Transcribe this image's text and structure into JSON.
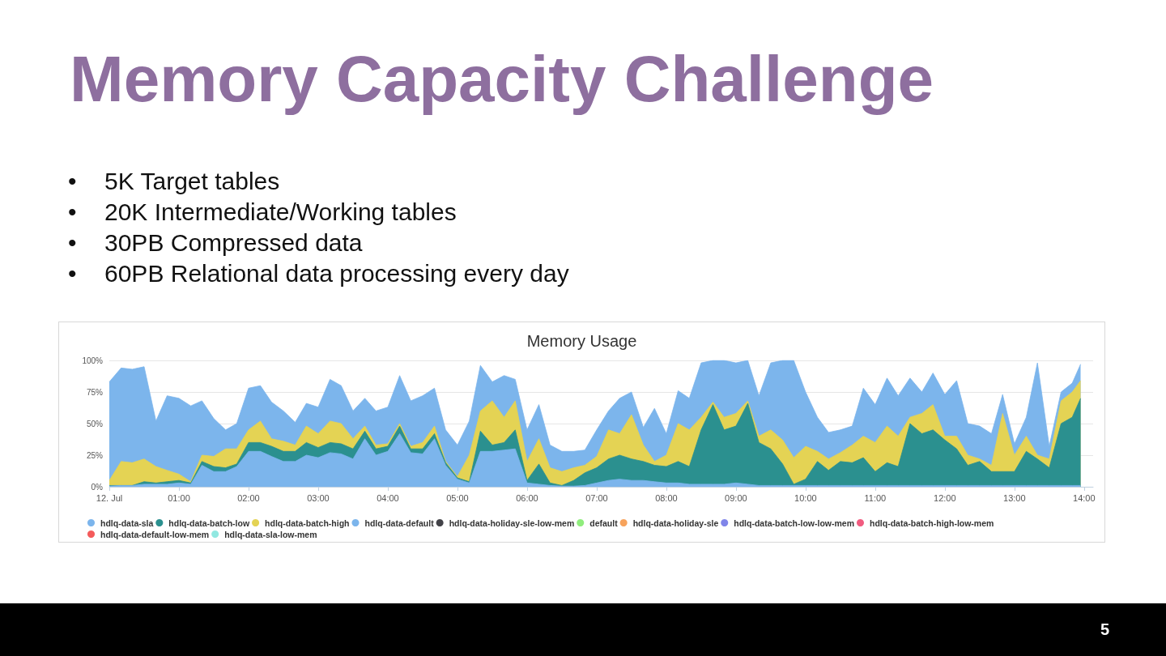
{
  "chart_data": {
    "type": "area",
    "title": "Memory Usage",
    "stacked": true,
    "grid": "y",
    "legend": "bottom",
    "marker": "none",
    "annotations": [
      "Memory Capacity Challenge",
      "• 5K Target tables",
      "• 20K Intermediate/Working tables",
      "• 30PB Compressed data",
      "• 60PB Relational data processing every day",
      "5"
    ],
    "xlim": [
      0,
      14.13
    ],
    "xticks": [
      {
        "value": 0,
        "label": "12. Jul"
      },
      {
        "value": 1,
        "label": "01:00"
      },
      {
        "value": 2,
        "label": "02:00"
      },
      {
        "value": 3,
        "label": "03:00"
      },
      {
        "value": 4,
        "label": "04:00"
      },
      {
        "value": 5,
        "label": "05:00"
      },
      {
        "value": 6,
        "label": "06:00"
      },
      {
        "value": 7,
        "label": "07:00"
      },
      {
        "value": 8,
        "label": "08:00"
      },
      {
        "value": 9,
        "label": "09:00"
      },
      {
        "value": 10,
        "label": "10:00"
      },
      {
        "value": 11,
        "label": "11:00"
      },
      {
        "value": 12,
        "label": "12:00"
      },
      {
        "value": 13,
        "label": "13:00"
      },
      {
        "value": 14,
        "label": "14:00"
      }
    ],
    "ylim": [
      0,
      100
    ],
    "yticks": [
      {
        "value": 0,
        "label": "0%"
      },
      {
        "value": 25,
        "label": "25%"
      },
      {
        "value": 50,
        "label": "50%"
      },
      {
        "value": 75,
        "label": "75%"
      },
      {
        "value": 100,
        "label": "100%"
      }
    ],
    "x": [
      0,
      0.17,
      0.33,
      0.5,
      0.67,
      0.83,
      1,
      1.17,
      1.33,
      1.5,
      1.67,
      1.83,
      2,
      2.17,
      2.33,
      2.5,
      2.67,
      2.83,
      3,
      3.17,
      3.33,
      3.5,
      3.67,
      3.83,
      4,
      4.17,
      4.33,
      4.5,
      4.67,
      4.83,
      5,
      5.17,
      5.33,
      5.5,
      5.67,
      5.83,
      6,
      6.17,
      6.33,
      6.5,
      6.67,
      6.83,
      7,
      7.17,
      7.33,
      7.5,
      7.67,
      7.83,
      8,
      8.17,
      8.33,
      8.5,
      8.67,
      8.83,
      9,
      9.17,
      9.33,
      9.5,
      9.67,
      9.83,
      10,
      10.17,
      10.33,
      10.5,
      10.67,
      10.83,
      11,
      11.17,
      11.33,
      11.5,
      11.67,
      11.83,
      12,
      12.17,
      12.33,
      12.5,
      12.67,
      12.83,
      13,
      13.17,
      13.33,
      13.5,
      13.67,
      13.83,
      13.95
    ],
    "series": [
      {
        "name": "hdlq-data-sla",
        "color": "#7cb5ec",
        "values": [
          0.5,
          1,
          1,
          2,
          2,
          2,
          3,
          2,
          17,
          12,
          12,
          16,
          28,
          28,
          24,
          20,
          20,
          25,
          23,
          27,
          26,
          22,
          38,
          25,
          28,
          42,
          27,
          26,
          38,
          17,
          6,
          3,
          28,
          28,
          29,
          30,
          3,
          2,
          1,
          0.5,
          0.5,
          1,
          3,
          5,
          6,
          5,
          5,
          4,
          3,
          3,
          2,
          2,
          2,
          2,
          3,
          2,
          1,
          1,
          1,
          1,
          1,
          1,
          1,
          1,
          1,
          1,
          1,
          1,
          1,
          1,
          1,
          1,
          1,
          1,
          1,
          1,
          1,
          1,
          1,
          1,
          1,
          1,
          1,
          1,
          1
        ]
      },
      {
        "name": "hdlq-data-batch-low",
        "color": "#2b908f",
        "values": [
          0.5,
          0,
          0,
          2,
          1,
          2,
          2,
          1,
          3,
          4,
          3,
          2,
          7,
          7,
          8,
          8,
          8,
          10,
          8,
          8,
          8,
          8,
          6,
          5,
          4,
          6,
          3,
          4,
          4,
          2,
          1,
          1,
          16,
          5,
          6,
          15,
          2,
          16,
          2,
          0.5,
          4.5,
          10,
          12,
          17,
          19,
          17,
          15,
          13,
          13,
          17,
          14,
          43,
          63,
          43,
          45,
          64,
          34,
          29,
          17,
          1,
          5,
          19,
          12,
          19,
          18,
          22,
          11,
          18,
          15,
          49,
          41,
          44,
          36,
          29,
          16,
          19,
          11,
          11,
          11,
          27,
          21,
          14,
          49,
          54,
          69
        ]
      },
      {
        "name": "hdlq-data-batch-high",
        "color": "#e4d354",
        "values": [
          4,
          19,
          18,
          18,
          13,
          9,
          5,
          1,
          5,
          8,
          15,
          12,
          10,
          17,
          6,
          8,
          5,
          13,
          11,
          17,
          16,
          8,
          4,
          3,
          2,
          2,
          2,
          5,
          6,
          1,
          1,
          21,
          16,
          35,
          20,
          23,
          15,
          20,
          12,
          11,
          10,
          6,
          9,
          23,
          17,
          35,
          13,
          3,
          9,
          30,
          29,
          10,
          2,
          10,
          10,
          2,
          5,
          15,
          19,
          21,
          26,
          8,
          9,
          7,
          14,
          17,
          23,
          29,
          24,
          5,
          16,
          20,
          3,
          10,
          8,
          2,
          5,
          46,
          13,
          12,
          3,
          7,
          18,
          20,
          14
        ]
      },
      {
        "name": "hdlq-data-default",
        "color": "#7cb5ec",
        "values": [
          78,
          74,
          74,
          73,
          36,
          59,
          60,
          60,
          43,
          30,
          15,
          20,
          33,
          28,
          29,
          24,
          18,
          18,
          21,
          33,
          30,
          22,
          22,
          27,
          29,
          38,
          36,
          37,
          30,
          25,
          25,
          27,
          36,
          15,
          33,
          17,
          25,
          27,
          18,
          16,
          13,
          12,
          21,
          15,
          28,
          18,
          14,
          42,
          17,
          26,
          25,
          43,
          33,
          45,
          40,
          32,
          32,
          53,
          63,
          77,
          43,
          27,
          21,
          18,
          15,
          38,
          30,
          38,
          32,
          31,
          17,
          25,
          33,
          44,
          25,
          26,
          25,
          15,
          9,
          15,
          73,
          10,
          7,
          7,
          13
        ]
      },
      {
        "name": "hdlq-data-holiday-sle-low-mem",
        "color": "#434348",
        "values": [
          null,
          null,
          null,
          null,
          null,
          null,
          null,
          null,
          null,
          null,
          null,
          null,
          null,
          null,
          null,
          null,
          null,
          null,
          null,
          null,
          null,
          null,
          null,
          null,
          null,
          null,
          null,
          null,
          null,
          null,
          null,
          null,
          null,
          null,
          null,
          null,
          null,
          null,
          null,
          null,
          null,
          null,
          null,
          null,
          null,
          null,
          null,
          null,
          null,
          null,
          null,
          null,
          null,
          null,
          null,
          null,
          null,
          null,
          null,
          null,
          null,
          null,
          null,
          null,
          null,
          null,
          null,
          null,
          null,
          null,
          null,
          null,
          null,
          null,
          null,
          null,
          null,
          null,
          null,
          null,
          null,
          null,
          null,
          null,
          null
        ]
      },
      {
        "name": "default",
        "color": "#90ed7d",
        "values": [
          null,
          null,
          null,
          null,
          null,
          null,
          null,
          null,
          null,
          null,
          null,
          null,
          null,
          null,
          null,
          null,
          null,
          null,
          null,
          null,
          null,
          null,
          null,
          null,
          null,
          null,
          null,
          null,
          null,
          null,
          null,
          null,
          null,
          null,
          null,
          null,
          null,
          null,
          null,
          null,
          null,
          null,
          null,
          null,
          null,
          null,
          null,
          null,
          null,
          null,
          null,
          null,
          null,
          null,
          null,
          null,
          null,
          null,
          null,
          null,
          null,
          null,
          null,
          null,
          null,
          null,
          null,
          null,
          null,
          null,
          null,
          null,
          null,
          null,
          null,
          null,
          null,
          null,
          null,
          null,
          null,
          null,
          null,
          null,
          null
        ]
      },
      {
        "name": "hdlq-data-holiday-sle",
        "color": "#f7a35c",
        "values": [
          null,
          null,
          null,
          null,
          null,
          null,
          null,
          null,
          null,
          null,
          null,
          null,
          null,
          null,
          null,
          null,
          null,
          null,
          null,
          null,
          null,
          null,
          null,
          null,
          null,
          null,
          null,
          null,
          null,
          null,
          null,
          null,
          null,
          null,
          null,
          null,
          null,
          null,
          null,
          null,
          null,
          null,
          null,
          null,
          null,
          null,
          null,
          null,
          null,
          null,
          null,
          null,
          null,
          null,
          null,
          null,
          null,
          null,
          null,
          null,
          null,
          null,
          null,
          null,
          null,
          null,
          null,
          null,
          null,
          null,
          null,
          null,
          null,
          null,
          null,
          null,
          null,
          null,
          null,
          null,
          null,
          null,
          null,
          null,
          null
        ]
      },
      {
        "name": "hdlq-data-batch-low-low-mem",
        "color": "#8085e9",
        "values": [
          null,
          null,
          null,
          null,
          null,
          null,
          null,
          null,
          null,
          null,
          null,
          null,
          null,
          null,
          null,
          null,
          null,
          null,
          null,
          null,
          null,
          null,
          null,
          null,
          null,
          null,
          null,
          null,
          null,
          null,
          null,
          null,
          null,
          null,
          null,
          null,
          null,
          null,
          null,
          null,
          null,
          null,
          null,
          null,
          null,
          null,
          null,
          null,
          null,
          null,
          null,
          null,
          null,
          null,
          null,
          null,
          null,
          null,
          null,
          null,
          null,
          null,
          null,
          null,
          null,
          null,
          null,
          null,
          null,
          null,
          null,
          null,
          null,
          null,
          null,
          null,
          null,
          null,
          null,
          null,
          null,
          null,
          null,
          null,
          null
        ]
      },
      {
        "name": "hdlq-data-batch-high-low-mem",
        "color": "#f15c80",
        "values": [
          null,
          null,
          null,
          null,
          null,
          null,
          null,
          null,
          null,
          null,
          null,
          null,
          null,
          null,
          null,
          null,
          null,
          null,
          null,
          null,
          null,
          null,
          null,
          null,
          null,
          null,
          null,
          null,
          null,
          null,
          null,
          null,
          null,
          null,
          null,
          null,
          null,
          null,
          null,
          null,
          null,
          null,
          null,
          null,
          null,
          null,
          null,
          null,
          null,
          null,
          null,
          null,
          null,
          null,
          null,
          null,
          null,
          null,
          null,
          null,
          null,
          null,
          null,
          null,
          null,
          null,
          null,
          null,
          null,
          null,
          null,
          null,
          null,
          null,
          null,
          null,
          null,
          null,
          null,
          null,
          null,
          null,
          null,
          null,
          null
        ]
      },
      {
        "name": "hdlq-data-default-low-mem",
        "color": "#f45b5b",
        "values": [
          null,
          null,
          null,
          null,
          null,
          null,
          null,
          null,
          null,
          null,
          null,
          null,
          null,
          null,
          null,
          null,
          null,
          null,
          null,
          null,
          null,
          null,
          null,
          null,
          null,
          null,
          null,
          null,
          null,
          null,
          null,
          null,
          null,
          null,
          null,
          null,
          null,
          null,
          null,
          null,
          null,
          null,
          null,
          null,
          null,
          null,
          null,
          null,
          null,
          null,
          null,
          null,
          null,
          null,
          null,
          null,
          null,
          null,
          null,
          null,
          null,
          null,
          null,
          null,
          null,
          null,
          null,
          null,
          null,
          null,
          null,
          null,
          null,
          null,
          null,
          null,
          null,
          null,
          null,
          null,
          null,
          null,
          null,
          null,
          null
        ]
      },
      {
        "name": "hdlq-data-sla-low-mem",
        "color": "#91e8e1",
        "values": [
          null,
          null,
          null,
          null,
          null,
          null,
          null,
          null,
          null,
          null,
          null,
          null,
          null,
          null,
          null,
          null,
          null,
          null,
          null,
          null,
          null,
          null,
          null,
          null,
          null,
          null,
          null,
          null,
          null,
          null,
          null,
          null,
          null,
          null,
          null,
          null,
          null,
          null,
          null,
          null,
          null,
          null,
          null,
          null,
          null,
          null,
          null,
          null,
          null,
          null,
          null,
          null,
          null,
          null,
          null,
          null,
          null,
          null,
          null,
          null,
          null,
          null,
          null,
          null,
          null,
          null,
          null,
          null,
          null,
          null,
          null,
          null,
          null,
          null,
          null,
          null,
          null,
          null,
          null,
          null,
          null,
          null,
          null,
          null,
          null
        ]
      }
    ]
  }
}
